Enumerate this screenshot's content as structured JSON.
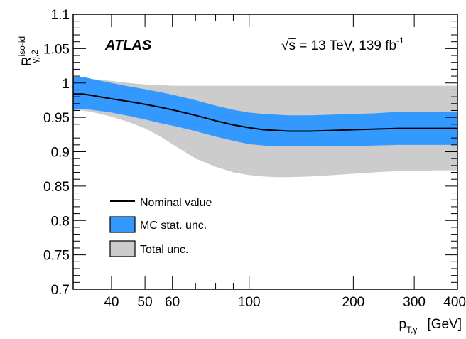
{
  "chart_data": {
    "type": "line",
    "title": "",
    "experiment_label": "ATLAS",
    "energy_label_prefix": "√",
    "energy_label_s": "s",
    "energy_label_rest": " = 13 TeV, 139 fb",
    "energy_label_sup": "-1",
    "ylabel": {
      "base": "R",
      "sup": "iso-id",
      "sub": "γj,2"
    },
    "xlabel": {
      "base": "p",
      "sub": "T,γ",
      "unit": "[GeV]"
    },
    "xscale": "log",
    "xlim": [
      31,
      400
    ],
    "ylim": [
      0.7,
      1.1
    ],
    "xticks_major": [
      {
        "value": 40,
        "label": "40"
      },
      {
        "value": 50,
        "label": "50"
      },
      {
        "value": 60,
        "label": "60"
      },
      {
        "value": 100,
        "label": "100"
      },
      {
        "value": 200,
        "label": "200"
      },
      {
        "value": 300,
        "label": "300"
      },
      {
        "value": 400,
        "label": "400"
      }
    ],
    "xticks_minor": [
      70,
      80,
      90
    ],
    "yticks_major": [
      {
        "value": 0.7,
        "label": "0.7"
      },
      {
        "value": 0.75,
        "label": "0.75"
      },
      {
        "value": 0.8,
        "label": "0.8"
      },
      {
        "value": 0.85,
        "label": "0.85"
      },
      {
        "value": 0.9,
        "label": "0.9"
      },
      {
        "value": 0.95,
        "label": "0.95"
      },
      {
        "value": 1.0,
        "label": "1"
      },
      {
        "value": 1.05,
        "label": "1.05"
      },
      {
        "value": 1.1,
        "label": "1.1"
      }
    ],
    "x": [
      31,
      33,
      35,
      40,
      45,
      50,
      55,
      60,
      70,
      80,
      90,
      100,
      110,
      120,
      130,
      150,
      175,
      200,
      230,
      270,
      300,
      350,
      400
    ],
    "series": [
      {
        "name": "Nominal value",
        "kind": "line",
        "color": "#000000",
        "values": [
          0.984,
          0.984,
          0.982,
          0.977,
          0.973,
          0.969,
          0.965,
          0.961,
          0.953,
          0.945,
          0.939,
          0.935,
          0.932,
          0.931,
          0.93,
          0.93,
          0.931,
          0.932,
          0.933,
          0.934,
          0.934,
          0.934,
          0.934
        ]
      },
      {
        "name": "MC stat. unc.",
        "kind": "band",
        "color": "#3399ff",
        "lower": [
          0.961,
          0.962,
          0.961,
          0.957,
          0.952,
          0.947,
          0.942,
          0.938,
          0.93,
          0.922,
          0.916,
          0.911,
          0.909,
          0.908,
          0.908,
          0.908,
          0.908,
          0.908,
          0.909,
          0.91,
          0.91,
          0.91,
          0.91
        ],
        "upper": [
          1.009,
          1.009,
          1.006,
          1.0,
          0.995,
          0.991,
          0.987,
          0.983,
          0.975,
          0.967,
          0.961,
          0.957,
          0.955,
          0.954,
          0.953,
          0.953,
          0.954,
          0.955,
          0.956,
          0.958,
          0.958,
          0.958,
          0.958
        ]
      },
      {
        "name": "Total unc.",
        "kind": "band",
        "color": "#cccccc",
        "lower": [
          0.961,
          0.96,
          0.958,
          0.951,
          0.943,
          0.934,
          0.923,
          0.911,
          0.89,
          0.878,
          0.87,
          0.866,
          0.864,
          0.863,
          0.863,
          0.864,
          0.866,
          0.868,
          0.87,
          0.872,
          0.872,
          0.873,
          0.873
        ],
        "upper": [
          1.009,
          1.009,
          1.006,
          1.003,
          1.0,
          0.998,
          0.997,
          0.996,
          0.996,
          0.996,
          0.996,
          0.996,
          0.996,
          0.996,
          0.996,
          0.996,
          0.996,
          0.996,
          0.996,
          0.996,
          0.996,
          0.996,
          0.996
        ]
      }
    ],
    "legend": {
      "placement": "lower-left",
      "entries": [
        {
          "label": "Nominal value",
          "series": 0
        },
        {
          "label": "MC stat. unc.",
          "series": 1
        },
        {
          "label": "Total unc.",
          "series": 2
        }
      ]
    }
  }
}
